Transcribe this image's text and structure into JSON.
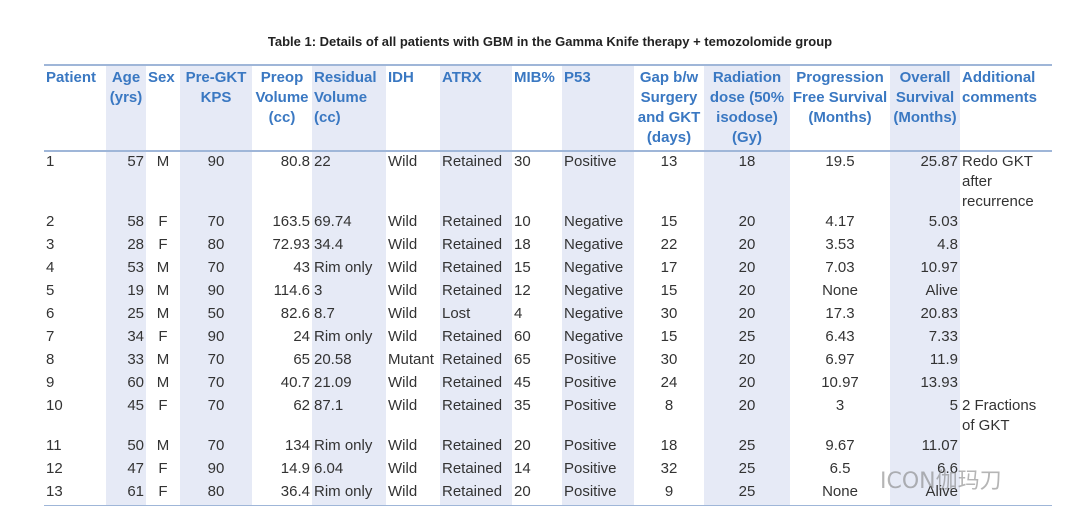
{
  "title": "Table 1: Details of all patients with GBM in the Gamma Knife therapy + temozolomide group",
  "table": {
    "columns": [
      "Patient",
      "Age (yrs)",
      "Sex",
      "Pre-GKT KPS",
      "Preop Volume (cc)",
      "Residual Volume (cc)",
      "IDH",
      "ATRX",
      "MIB%",
      "P53",
      "Gap b/w Surgery and GKT (days)",
      "Radiation dose (50% isodose) (Gy)",
      "Progression Free Survival (Months)",
      "Overall Survival (Months)",
      "Additional comments"
    ],
    "rows": [
      [
        "1",
        "57",
        "M",
        "90",
        "80.8",
        "22",
        "Wild",
        "Retained",
        "30",
        "Positive",
        "13",
        "18",
        "19.5",
        "25.87",
        "Redo GKT after recurrence"
      ],
      [
        "2",
        "58",
        "F",
        "70",
        "163.5",
        "69.74",
        "Wild",
        "Retained",
        "10",
        "Negative",
        "15",
        "20",
        "4.17",
        "5.03",
        null
      ],
      [
        "3",
        "28",
        "F",
        "80",
        "72.93",
        "34.4",
        "Wild",
        "Retained",
        "18",
        "Negative",
        "22",
        "20",
        "3.53",
        "4.8",
        null
      ],
      [
        "4",
        "53",
        "M",
        "70",
        "43",
        "Rim only",
        "Wild",
        "Retained",
        "15",
        "Negative",
        "17",
        "20",
        "7.03",
        "10.97",
        null
      ],
      [
        "5",
        "19",
        "M",
        "90",
        "114.6",
        "3",
        "Wild",
        "Retained",
        "12",
        "Negative",
        "15",
        "20",
        "None",
        "Alive",
        null
      ],
      [
        "6",
        "25",
        "M",
        "50",
        "82.6",
        "8.7",
        "Wild",
        "Lost",
        "4",
        "Negative",
        "30",
        "20",
        "17.3",
        "20.83",
        null
      ],
      [
        "7",
        "34",
        "F",
        "90",
        "24",
        "Rim only",
        "Wild",
        "Retained",
        "60",
        "Negative",
        "15",
        "25",
        "6.43",
        "7.33",
        null
      ],
      [
        "8",
        "33",
        "M",
        "70",
        "65",
        "20.58",
        "Mutant",
        "Retained",
        "65",
        "Positive",
        "30",
        "20",
        "6.97",
        "11.9",
        null
      ],
      [
        "9",
        "60",
        "M",
        "70",
        "40.7",
        "21.09",
        "Wild",
        "Retained",
        "45",
        "Positive",
        "24",
        "20",
        "10.97",
        "13.93",
        null
      ],
      [
        "10",
        "45",
        "F",
        "70",
        "62",
        "87.1",
        "Wild",
        "Retained",
        "35",
        "Positive",
        "8",
        "20",
        "3",
        "5",
        "2 Fractions of GKT"
      ],
      [
        "11",
        "50",
        "M",
        "70",
        "134",
        "Rim only",
        "Wild",
        "Retained",
        "20",
        "Positive",
        "18",
        "25",
        "9.67",
        "11.07",
        null
      ],
      [
        "12",
        "47",
        "F",
        "90",
        "14.9",
        "6.04",
        "Wild",
        "Retained",
        "14",
        "Positive",
        "32",
        "25",
        "6.5",
        "6.6",
        null
      ],
      [
        "13",
        "61",
        "F",
        "80",
        "36.4",
        "Rim only",
        "Wild",
        "Retained",
        "20",
        "Positive",
        "9",
        "25",
        "None",
        "Alive",
        null
      ]
    ]
  },
  "watermark": "ICON伽玛刀"
}
